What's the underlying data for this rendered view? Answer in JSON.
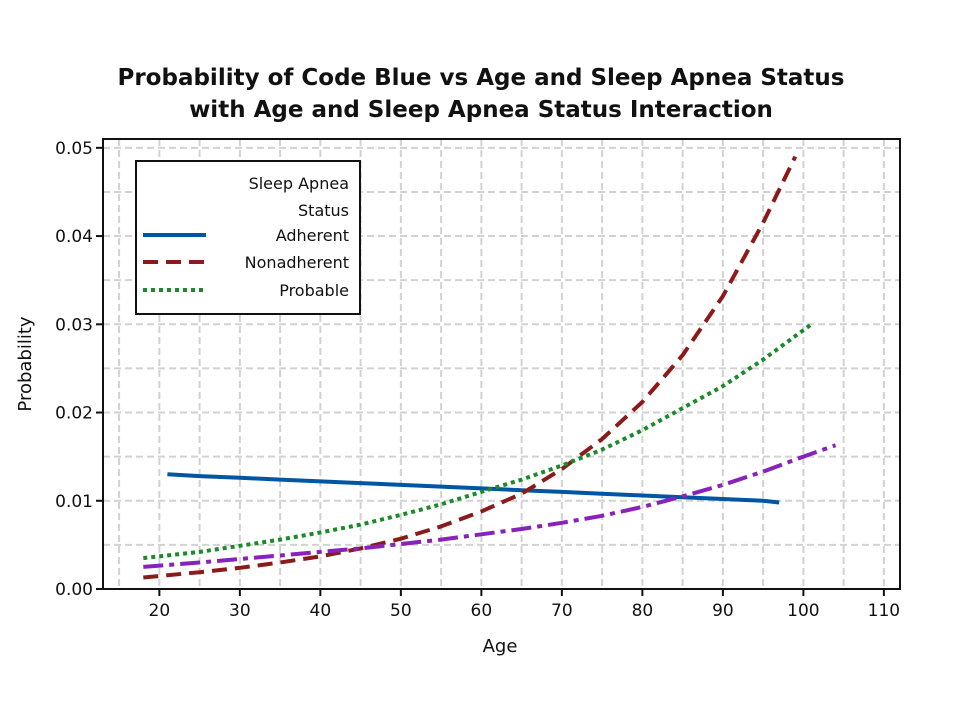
{
  "chart_data": {
    "type": "line",
    "title": [
      "Probability of Code Blue vs Age and Sleep Apnea Status",
      "with Age and Sleep Apnea Status Interaction"
    ],
    "xlabel": "Age",
    "ylabel": "Probability",
    "xlim": [
      13,
      112
    ],
    "ylim": [
      0,
      0.051
    ],
    "xticks": [
      20,
      30,
      40,
      50,
      60,
      70,
      80,
      90,
      100,
      110
    ],
    "yticks": [
      0.0,
      0.01,
      0.02,
      0.03,
      0.04,
      0.05
    ],
    "ytick_labels": [
      "0.00",
      "0.01",
      "0.02",
      "0.03",
      "0.04",
      "0.05"
    ],
    "grid": true,
    "legend": {
      "title": [
        "Sleep Apnea",
        "Status"
      ],
      "placement": "top-left",
      "entries": [
        "Adherent",
        "Nonadherent",
        "Probable"
      ]
    },
    "series": [
      {
        "name": "Adherent",
        "color": "#0055a5",
        "dash": "solid",
        "x": [
          21,
          25,
          30,
          35,
          40,
          45,
          50,
          55,
          60,
          65,
          70,
          75,
          80,
          85,
          90,
          95,
          97
        ],
        "y": [
          0.013,
          0.0128,
          0.0126,
          0.0124,
          0.0122,
          0.012,
          0.0118,
          0.0116,
          0.0114,
          0.0112,
          0.011,
          0.0108,
          0.0106,
          0.0104,
          0.0102,
          0.01,
          0.0098
        ]
      },
      {
        "name": "Nonadherent",
        "color": "#8b1a1a",
        "dash": "long-dash",
        "x": [
          18,
          25,
          30,
          35,
          40,
          45,
          50,
          55,
          60,
          65,
          70,
          75,
          80,
          85,
          90,
          95,
          99
        ],
        "y": [
          0.0013,
          0.0019,
          0.0024,
          0.003,
          0.0037,
          0.0046,
          0.0057,
          0.0071,
          0.0088,
          0.0108,
          0.0136,
          0.017,
          0.0212,
          0.0265,
          0.0332,
          0.0415,
          0.049
        ]
      },
      {
        "name": "Probable",
        "color": "#1a8a2a",
        "dash": "dotted",
        "x": [
          18,
          25,
          30,
          35,
          40,
          45,
          50,
          55,
          60,
          65,
          70,
          75,
          80,
          85,
          90,
          95,
          101
        ],
        "y": [
          0.0035,
          0.0042,
          0.0049,
          0.0056,
          0.0064,
          0.0073,
          0.0084,
          0.0096,
          0.011,
          0.0124,
          0.014,
          0.0158,
          0.018,
          0.0205,
          0.023,
          0.026,
          0.03
        ]
      },
      {
        "color": "#8822bb",
        "dash": "dash-dot",
        "x": [
          18,
          25,
          30,
          35,
          40,
          45,
          50,
          55,
          60,
          65,
          70,
          75,
          80,
          85,
          90,
          95,
          100,
          104
        ],
        "y": [
          0.0025,
          0.003,
          0.0034,
          0.0038,
          0.0042,
          0.0046,
          0.0051,
          0.0056,
          0.0062,
          0.0068,
          0.0075,
          0.0083,
          0.0093,
          0.0105,
          0.0118,
          0.0133,
          0.015,
          0.0163
        ]
      }
    ]
  }
}
